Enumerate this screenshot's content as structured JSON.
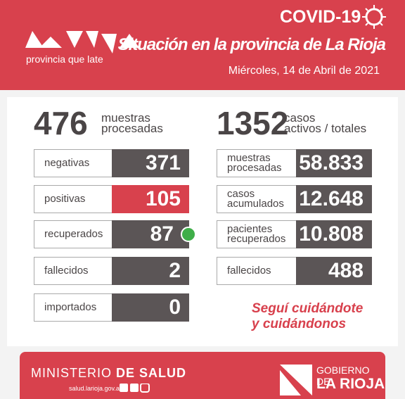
{
  "header": {
    "tagline": "provincia que late",
    "badge": "COVID-19",
    "title": "Situación en la provincia de La Rioja",
    "date": "Miércoles, 14 de Abril de 2021"
  },
  "left": {
    "total": "476",
    "total_label": [
      "muestras",
      "procesadas"
    ],
    "rows": [
      {
        "label": [
          "negativas"
        ],
        "value": "371",
        "color": "#5b5556"
      },
      {
        "label": [
          "positivas"
        ],
        "value": "105",
        "color": "#d8414d"
      },
      {
        "label": [
          "recuperados"
        ],
        "value": "87",
        "color": "#5b5556"
      },
      {
        "label": [
          "fallecidos"
        ],
        "value": "2",
        "color": "#5b5556"
      },
      {
        "label": [
          "importados"
        ],
        "value": "0",
        "color": "#5b5556"
      }
    ]
  },
  "right": {
    "total": "1352",
    "total_label": [
      "casos",
      "activos / totales"
    ],
    "rows": [
      {
        "label": [
          "muestras",
          "procesadas"
        ],
        "value": "58.833",
        "color": "#5b5556"
      },
      {
        "label": [
          "casos",
          "acumulados"
        ],
        "value": "12.648",
        "color": "#5b5556"
      },
      {
        "label": [
          "pacientes",
          "recuperados"
        ],
        "value": "10.808",
        "color": "#5b5556"
      },
      {
        "label": [
          "fallecidos"
        ],
        "value": "488",
        "color": "#5b5556"
      }
    ]
  },
  "slogan": [
    "Seguí cuidándote",
    "y cuidándonos"
  ],
  "footer": {
    "ministry": [
      "MINISTERIO",
      "DE SALUD"
    ],
    "website": "salud.larioja.gov.ar",
    "government": [
      "GOBIERNO DE",
      "LA RIOJA"
    ]
  }
}
